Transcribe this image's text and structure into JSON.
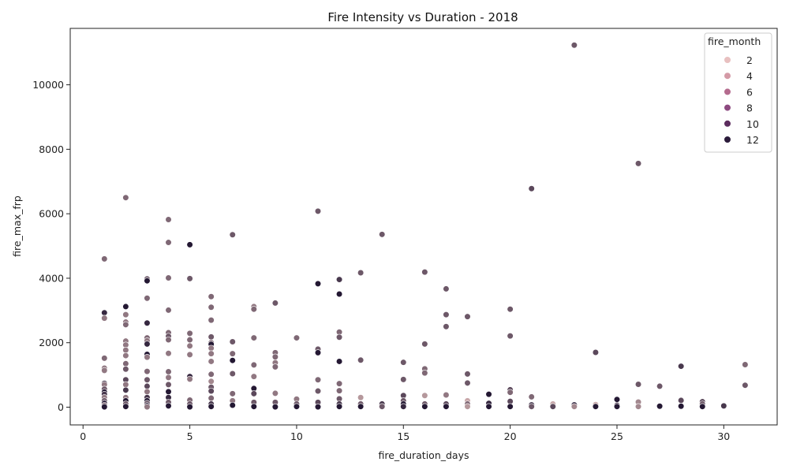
{
  "chart_data": {
    "type": "scatter",
    "title": "Fire Intensity vs Duration - 2018",
    "xlabel": "fire_duration_days",
    "ylabel": "fire_max_frp",
    "xlim": [
      -0.6,
      32.5
    ],
    "ylim": [
      -550,
      11750
    ],
    "xticks": [
      0,
      5,
      10,
      15,
      20,
      25,
      30
    ],
    "yticks": [
      0,
      2000,
      4000,
      6000,
      8000,
      10000
    ],
    "grid": false,
    "legend": {
      "title": "fire_month",
      "placement": "top-right",
      "entries": [
        {
          "label": "2",
          "color": "#e8c0c0"
        },
        {
          "label": "4",
          "color": "#d49aa6"
        },
        {
          "label": "6",
          "color": "#b46b8e"
        },
        {
          "label": "8",
          "color": "#8d4a80"
        },
        {
          "label": "10",
          "color": "#5c2d5e"
        },
        {
          "label": "12",
          "color": "#2b1b3a"
        }
      ]
    },
    "hue_scale": {
      "min": 1,
      "max": 12,
      "light": "#ecc8c4",
      "dark": "#241833"
    },
    "points": [
      {
        "x": 1,
        "y": 4600,
        "m": 7
      },
      {
        "x": 1,
        "y": 2930,
        "m": 11
      },
      {
        "x": 1,
        "y": 2760,
        "m": 6
      },
      {
        "x": 1,
        "y": 1520,
        "m": 7
      },
      {
        "x": 1,
        "y": 1210,
        "m": 6
      },
      {
        "x": 1,
        "y": 1140,
        "m": 6
      },
      {
        "x": 1,
        "y": 740,
        "m": 11
      },
      {
        "x": 1,
        "y": 700,
        "m": 6
      },
      {
        "x": 1,
        "y": 560,
        "m": 8
      },
      {
        "x": 1,
        "y": 470,
        "m": 12
      },
      {
        "x": 1,
        "y": 400,
        "m": 10
      },
      {
        "x": 1,
        "y": 300,
        "m": 6
      },
      {
        "x": 1,
        "y": 200,
        "m": 8
      },
      {
        "x": 1,
        "y": 120,
        "m": 12
      },
      {
        "x": 1,
        "y": 60,
        "m": 7
      },
      {
        "x": 1,
        "y": 10,
        "m": 12
      },
      {
        "x": 2,
        "y": 6500,
        "m": 7
      },
      {
        "x": 2,
        "y": 3120,
        "m": 12
      },
      {
        "x": 2,
        "y": 2870,
        "m": 6
      },
      {
        "x": 2,
        "y": 2640,
        "m": 6
      },
      {
        "x": 2,
        "y": 2560,
        "m": 7
      },
      {
        "x": 2,
        "y": 2050,
        "m": 6
      },
      {
        "x": 2,
        "y": 1930,
        "m": 6
      },
      {
        "x": 2,
        "y": 1770,
        "m": 6
      },
      {
        "x": 2,
        "y": 1600,
        "m": 6
      },
      {
        "x": 2,
        "y": 1350,
        "m": 7
      },
      {
        "x": 2,
        "y": 1180,
        "m": 8
      },
      {
        "x": 2,
        "y": 850,
        "m": 9
      },
      {
        "x": 2,
        "y": 700,
        "m": 6
      },
      {
        "x": 2,
        "y": 530,
        "m": 10
      },
      {
        "x": 2,
        "y": 300,
        "m": 6
      },
      {
        "x": 2,
        "y": 200,
        "m": 12
      },
      {
        "x": 2,
        "y": 100,
        "m": 8
      },
      {
        "x": 2,
        "y": 20,
        "m": 12
      },
      {
        "x": 3,
        "y": 3980,
        "m": 8
      },
      {
        "x": 3,
        "y": 3920,
        "m": 12
      },
      {
        "x": 3,
        "y": 3380,
        "m": 7
      },
      {
        "x": 3,
        "y": 2610,
        "m": 11
      },
      {
        "x": 3,
        "y": 2150,
        "m": 7
      },
      {
        "x": 3,
        "y": 2060,
        "m": 6
      },
      {
        "x": 3,
        "y": 1960,
        "m": 11
      },
      {
        "x": 3,
        "y": 1640,
        "m": 12
      },
      {
        "x": 3,
        "y": 1550,
        "m": 6
      },
      {
        "x": 3,
        "y": 1110,
        "m": 7
      },
      {
        "x": 3,
        "y": 850,
        "m": 8
      },
      {
        "x": 3,
        "y": 650,
        "m": 9
      },
      {
        "x": 3,
        "y": 480,
        "m": 6
      },
      {
        "x": 3,
        "y": 300,
        "m": 10
      },
      {
        "x": 3,
        "y": 200,
        "m": 12
      },
      {
        "x": 3,
        "y": 120,
        "m": 8
      },
      {
        "x": 3,
        "y": 50,
        "m": 12
      },
      {
        "x": 3,
        "y": 10,
        "m": 6
      },
      {
        "x": 4,
        "y": 5820,
        "m": 7
      },
      {
        "x": 4,
        "y": 5110,
        "m": 7
      },
      {
        "x": 4,
        "y": 4010,
        "m": 7
      },
      {
        "x": 4,
        "y": 3010,
        "m": 7
      },
      {
        "x": 4,
        "y": 2310,
        "m": 7
      },
      {
        "x": 4,
        "y": 2200,
        "m": 8
      },
      {
        "x": 4,
        "y": 2090,
        "m": 7
      },
      {
        "x": 4,
        "y": 1670,
        "m": 6
      },
      {
        "x": 4,
        "y": 1100,
        "m": 7
      },
      {
        "x": 4,
        "y": 920,
        "m": 6
      },
      {
        "x": 4,
        "y": 700,
        "m": 8
      },
      {
        "x": 4,
        "y": 480,
        "m": 12
      },
      {
        "x": 4,
        "y": 300,
        "m": 11
      },
      {
        "x": 4,
        "y": 150,
        "m": 8
      },
      {
        "x": 4,
        "y": 40,
        "m": 12
      },
      {
        "x": 5,
        "y": 5040,
        "m": 12
      },
      {
        "x": 5,
        "y": 3990,
        "m": 8
      },
      {
        "x": 5,
        "y": 2290,
        "m": 7
      },
      {
        "x": 5,
        "y": 2090,
        "m": 7
      },
      {
        "x": 5,
        "y": 1900,
        "m": 6
      },
      {
        "x": 5,
        "y": 1630,
        "m": 6
      },
      {
        "x": 5,
        "y": 950,
        "m": 11
      },
      {
        "x": 5,
        "y": 870,
        "m": 6
      },
      {
        "x": 5,
        "y": 220,
        "m": 7
      },
      {
        "x": 5,
        "y": 100,
        "m": 8
      },
      {
        "x": 5,
        "y": 10,
        "m": 12
      },
      {
        "x": 6,
        "y": 3430,
        "m": 7
      },
      {
        "x": 6,
        "y": 3100,
        "m": 7
      },
      {
        "x": 6,
        "y": 2700,
        "m": 7
      },
      {
        "x": 6,
        "y": 2180,
        "m": 8
      },
      {
        "x": 6,
        "y": 2000,
        "m": 7
      },
      {
        "x": 6,
        "y": 1950,
        "m": 12
      },
      {
        "x": 6,
        "y": 1830,
        "m": 6
      },
      {
        "x": 6,
        "y": 1660,
        "m": 6
      },
      {
        "x": 6,
        "y": 1420,
        "m": 6
      },
      {
        "x": 6,
        "y": 1020,
        "m": 7
      },
      {
        "x": 6,
        "y": 800,
        "m": 5
      },
      {
        "x": 6,
        "y": 620,
        "m": 8
      },
      {
        "x": 6,
        "y": 500,
        "m": 9
      },
      {
        "x": 6,
        "y": 280,
        "m": 7
      },
      {
        "x": 6,
        "y": 100,
        "m": 10
      },
      {
        "x": 6,
        "y": 20,
        "m": 12
      },
      {
        "x": 7,
        "y": 5350,
        "m": 8
      },
      {
        "x": 7,
        "y": 2030,
        "m": 8
      },
      {
        "x": 7,
        "y": 1660,
        "m": 7
      },
      {
        "x": 7,
        "y": 1450,
        "m": 12
      },
      {
        "x": 7,
        "y": 1040,
        "m": 8
      },
      {
        "x": 7,
        "y": 420,
        "m": 7
      },
      {
        "x": 7,
        "y": 200,
        "m": 6
      },
      {
        "x": 7,
        "y": 60,
        "m": 12
      },
      {
        "x": 8,
        "y": 3120,
        "m": 6
      },
      {
        "x": 8,
        "y": 3040,
        "m": 7
      },
      {
        "x": 8,
        "y": 2150,
        "m": 7
      },
      {
        "x": 8,
        "y": 1310,
        "m": 7
      },
      {
        "x": 8,
        "y": 950,
        "m": 6
      },
      {
        "x": 8,
        "y": 580,
        "m": 12
      },
      {
        "x": 8,
        "y": 420,
        "m": 9
      },
      {
        "x": 8,
        "y": 150,
        "m": 8
      },
      {
        "x": 8,
        "y": 20,
        "m": 12
      },
      {
        "x": 9,
        "y": 3230,
        "m": 8
      },
      {
        "x": 9,
        "y": 1690,
        "m": 7
      },
      {
        "x": 9,
        "y": 1560,
        "m": 7
      },
      {
        "x": 9,
        "y": 1380,
        "m": 6
      },
      {
        "x": 9,
        "y": 1250,
        "m": 7
      },
      {
        "x": 9,
        "y": 430,
        "m": 6
      },
      {
        "x": 9,
        "y": 150,
        "m": 8
      },
      {
        "x": 9,
        "y": 10,
        "m": 12
      },
      {
        "x": 10,
        "y": 2150,
        "m": 7
      },
      {
        "x": 10,
        "y": 250,
        "m": 6
      },
      {
        "x": 10,
        "y": 100,
        "m": 8
      },
      {
        "x": 10,
        "y": 20,
        "m": 12
      },
      {
        "x": 11,
        "y": 6080,
        "m": 8
      },
      {
        "x": 11,
        "y": 3830,
        "m": 12
      },
      {
        "x": 11,
        "y": 1800,
        "m": 8
      },
      {
        "x": 11,
        "y": 1690,
        "m": 12
      },
      {
        "x": 11,
        "y": 850,
        "m": 7
      },
      {
        "x": 11,
        "y": 500,
        "m": 8
      },
      {
        "x": 11,
        "y": 150,
        "m": 9
      },
      {
        "x": 11,
        "y": 10,
        "m": 12
      },
      {
        "x": 12,
        "y": 3960,
        "m": 10
      },
      {
        "x": 12,
        "y": 3510,
        "m": 12
      },
      {
        "x": 12,
        "y": 2330,
        "m": 7
      },
      {
        "x": 12,
        "y": 2170,
        "m": 8
      },
      {
        "x": 12,
        "y": 1420,
        "m": 12
      },
      {
        "x": 12,
        "y": 730,
        "m": 7
      },
      {
        "x": 12,
        "y": 510,
        "m": 7
      },
      {
        "x": 12,
        "y": 260,
        "m": 8
      },
      {
        "x": 12,
        "y": 100,
        "m": 10
      },
      {
        "x": 12,
        "y": 20,
        "m": 12
      },
      {
        "x": 13,
        "y": 4170,
        "m": 8
      },
      {
        "x": 13,
        "y": 1460,
        "m": 8
      },
      {
        "x": 13,
        "y": 300,
        "m": 4
      },
      {
        "x": 13,
        "y": 100,
        "m": 8
      },
      {
        "x": 13,
        "y": 20,
        "m": 12
      },
      {
        "x": 14,
        "y": 5360,
        "m": 8
      },
      {
        "x": 14,
        "y": 100,
        "m": 10
      },
      {
        "x": 14,
        "y": 20,
        "m": 8
      },
      {
        "x": 15,
        "y": 1390,
        "m": 8
      },
      {
        "x": 15,
        "y": 860,
        "m": 8
      },
      {
        "x": 15,
        "y": 360,
        "m": 9
      },
      {
        "x": 15,
        "y": 200,
        "m": 8
      },
      {
        "x": 15,
        "y": 100,
        "m": 12
      },
      {
        "x": 15,
        "y": 20,
        "m": 11
      },
      {
        "x": 16,
        "y": 4190,
        "m": 8
      },
      {
        "x": 16,
        "y": 1960,
        "m": 8
      },
      {
        "x": 16,
        "y": 1190,
        "m": 7
      },
      {
        "x": 16,
        "y": 1060,
        "m": 7
      },
      {
        "x": 16,
        "y": 360,
        "m": 4
      },
      {
        "x": 16,
        "y": 100,
        "m": 8
      },
      {
        "x": 16,
        "y": 20,
        "m": 12
      },
      {
        "x": 17,
        "y": 3670,
        "m": 8
      },
      {
        "x": 17,
        "y": 2870,
        "m": 8
      },
      {
        "x": 17,
        "y": 2500,
        "m": 8
      },
      {
        "x": 17,
        "y": 380,
        "m": 6
      },
      {
        "x": 17,
        "y": 100,
        "m": 9
      },
      {
        "x": 17,
        "y": 20,
        "m": 12
      },
      {
        "x": 18,
        "y": 2810,
        "m": 8
      },
      {
        "x": 18,
        "y": 1030,
        "m": 8
      },
      {
        "x": 18,
        "y": 750,
        "m": 8
      },
      {
        "x": 18,
        "y": 200,
        "m": 3
      },
      {
        "x": 18,
        "y": 100,
        "m": 7
      },
      {
        "x": 18,
        "y": 20,
        "m": 4
      },
      {
        "x": 19,
        "y": 400,
        "m": 12
      },
      {
        "x": 19,
        "y": 120,
        "m": 11
      },
      {
        "x": 19,
        "y": 20,
        "m": 12
      },
      {
        "x": 20,
        "y": 3040,
        "m": 8
      },
      {
        "x": 20,
        "y": 2210,
        "m": 8
      },
      {
        "x": 20,
        "y": 540,
        "m": 9
      },
      {
        "x": 20,
        "y": 460,
        "m": 7
      },
      {
        "x": 20,
        "y": 180,
        "m": 9
      },
      {
        "x": 20,
        "y": 20,
        "m": 12
      },
      {
        "x": 21,
        "y": 6780,
        "m": 9
      },
      {
        "x": 21,
        "y": 320,
        "m": 7
      },
      {
        "x": 21,
        "y": 70,
        "m": 11
      },
      {
        "x": 21,
        "y": 20,
        "m": 8
      },
      {
        "x": 22,
        "y": 100,
        "m": 3
      },
      {
        "x": 22,
        "y": 20,
        "m": 9
      },
      {
        "x": 23,
        "y": 11230,
        "m": 8
      },
      {
        "x": 23,
        "y": 70,
        "m": 12
      },
      {
        "x": 23,
        "y": 20,
        "m": 5
      },
      {
        "x": 24,
        "y": 1700,
        "m": 9
      },
      {
        "x": 24,
        "y": 80,
        "m": 3
      },
      {
        "x": 24,
        "y": 20,
        "m": 12
      },
      {
        "x": 25,
        "y": 240,
        "m": 12
      },
      {
        "x": 25,
        "y": 60,
        "m": 10
      },
      {
        "x": 25,
        "y": 20,
        "m": 12
      },
      {
        "x": 26,
        "y": 7560,
        "m": 8
      },
      {
        "x": 26,
        "y": 710,
        "m": 8
      },
      {
        "x": 26,
        "y": 160,
        "m": 5
      },
      {
        "x": 26,
        "y": 20,
        "m": 5
      },
      {
        "x": 27,
        "y": 650,
        "m": 8
      },
      {
        "x": 27,
        "y": 30,
        "m": 12
      },
      {
        "x": 28,
        "y": 1270,
        "m": 10
      },
      {
        "x": 28,
        "y": 210,
        "m": 9
      },
      {
        "x": 28,
        "y": 30,
        "m": 12
      },
      {
        "x": 29,
        "y": 170,
        "m": 9
      },
      {
        "x": 29,
        "y": 100,
        "m": 8
      },
      {
        "x": 29,
        "y": 20,
        "m": 12
      },
      {
        "x": 30,
        "y": 40,
        "m": 10
      },
      {
        "x": 31,
        "y": 1320,
        "m": 7
      },
      {
        "x": 31,
        "y": 680,
        "m": 8
      }
    ]
  }
}
